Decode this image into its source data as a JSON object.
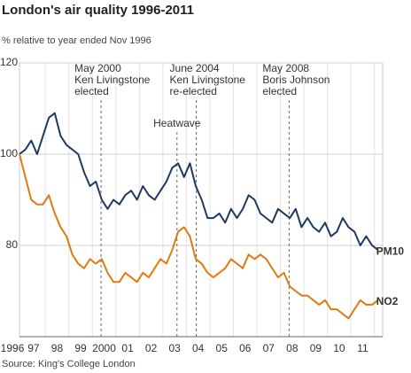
{
  "chart_data": {
    "type": "line",
    "title": "London's air quality 1996-2011",
    "subtitle": "% relative to year ended Nov 1996",
    "source": "Source: King's College London",
    "x": [
      1996.9,
      1997.15,
      1997.4,
      1997.65,
      1997.9,
      1998.15,
      1998.4,
      1998.65,
      1998.9,
      1999.15,
      1999.4,
      1999.65,
      1999.9,
      2000.15,
      2000.4,
      2000.65,
      2000.9,
      2001.15,
      2001.4,
      2001.65,
      2001.9,
      2002.15,
      2002.4,
      2002.65,
      2002.9,
      2003.15,
      2003.4,
      2003.65,
      2003.9,
      2004.15,
      2004.4,
      2004.65,
      2004.9,
      2005.15,
      2005.4,
      2005.65,
      2005.9,
      2006.15,
      2006.4,
      2006.65,
      2006.9,
      2007.15,
      2007.4,
      2007.65,
      2007.9,
      2008.15,
      2008.4,
      2008.65,
      2008.9,
      2009.15,
      2009.4,
      2009.65,
      2009.9,
      2010.15,
      2010.4,
      2010.65,
      2010.9,
      2011.15,
      2011.4,
      2011.65,
      2011.9,
      2012.15
    ],
    "series": [
      {
        "name": "PM10",
        "color": "#1f3a60",
        "values": [
          100,
          101,
          103,
          100,
          104,
          108,
          109,
          104,
          102,
          101,
          100,
          96,
          93,
          94,
          90,
          88,
          90,
          89,
          91,
          92,
          90,
          93,
          91,
          90,
          92,
          94,
          97,
          98,
          95,
          98,
          93,
          90,
          86,
          86,
          87,
          85,
          88,
          86,
          88,
          91,
          90,
          87,
          86,
          85,
          88,
          87,
          86,
          88,
          84,
          86,
          84,
          83,
          85,
          82,
          83,
          86,
          84,
          83,
          80,
          82,
          80,
          79
        ]
      },
      {
        "name": "NO2",
        "color": "#e07b12",
        "values": [
          100,
          95,
          90,
          89,
          89,
          91,
          87,
          84,
          82,
          78,
          76,
          75,
          77,
          76,
          77,
          74,
          72,
          72,
          74,
          73,
          72,
          74,
          73,
          75,
          77,
          76,
          79,
          83,
          84,
          82,
          77,
          76,
          74,
          73,
          74,
          75,
          77,
          76,
          75,
          78,
          77,
          78,
          77,
          75,
          73,
          74,
          71,
          70,
          69,
          69,
          68,
          67,
          68,
          66,
          66,
          65,
          64,
          66,
          68,
          67,
          67,
          68
        ]
      }
    ],
    "xlim": [
      1996.9,
      2012.35
    ],
    "ylim": [
      60,
      120
    ],
    "yticks": [
      80,
      100,
      120
    ],
    "xticks": [
      {
        "value": 1996.6,
        "label": "1996"
      },
      {
        "value": 1997.5,
        "label": "97"
      },
      {
        "value": 1998.5,
        "label": "98"
      },
      {
        "value": 1999.5,
        "label": "99"
      },
      {
        "value": 2000.5,
        "label": "2000"
      },
      {
        "value": 2001.5,
        "label": "01"
      },
      {
        "value": 2002.5,
        "label": "02"
      },
      {
        "value": 2003.5,
        "label": "03"
      },
      {
        "value": 2004.5,
        "label": "04"
      },
      {
        "value": 2005.5,
        "label": "05"
      },
      {
        "value": 2006.5,
        "label": "06"
      },
      {
        "value": 2007.5,
        "label": "07"
      },
      {
        "value": 2008.5,
        "label": "08"
      },
      {
        "value": 2009.5,
        "label": "09"
      },
      {
        "value": 2010.5,
        "label": "10"
      },
      {
        "value": 2011.5,
        "label": "11"
      }
    ],
    "xgrid": [
      1998,
      1999,
      2000,
      2001,
      2002,
      2003,
      2004,
      2005,
      2006,
      2007,
      2008,
      2009,
      2010,
      2011,
      2012
    ],
    "grid": true,
    "annotations": [
      {
        "lines": [
          "May 2000",
          "Ken Livingstone",
          "elected"
        ],
        "x": 2000.37
      },
      {
        "lines": [
          "June 2004",
          "Ken Livingstone",
          "re-elected"
        ],
        "x": 2004.42
      },
      {
        "lines": [
          "May 2008",
          "Boris Johnson",
          "elected"
        ],
        "x": 2008.37
      },
      {
        "lines": [
          "Heatwave"
        ],
        "x": 2003.6
      }
    ]
  }
}
